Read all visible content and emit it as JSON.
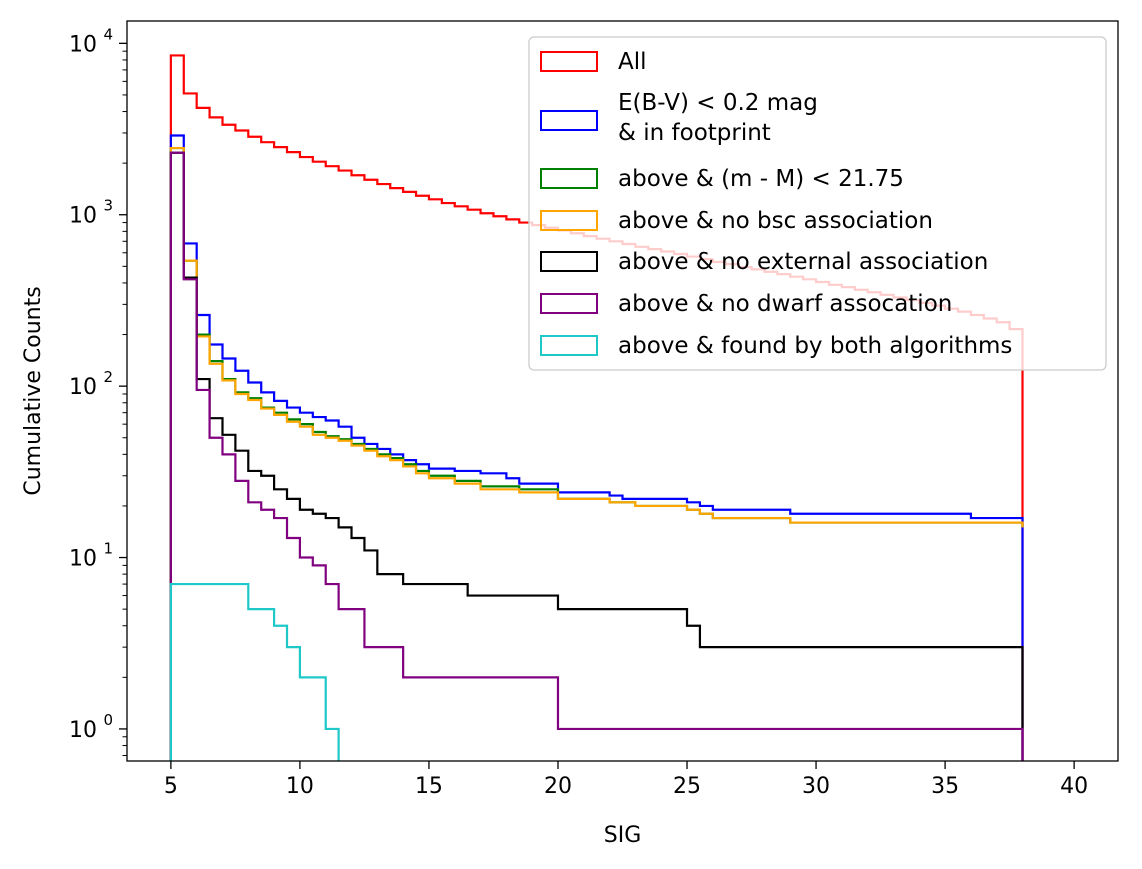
{
  "chart_data": {
    "type": "step-histogram",
    "xlabel": "SIG",
    "ylabel": "Cumulative Counts",
    "xlim": [
      3.3,
      41.7
    ],
    "ylim": [
      0.65,
      13500
    ],
    "yscale": "log",
    "xticks": [
      5,
      10,
      15,
      20,
      25,
      30,
      35,
      40
    ],
    "xtick_labels": [
      "5",
      "10",
      "15",
      "20",
      "25",
      "30",
      "35",
      "40"
    ],
    "yticks": [
      {
        "base": "10",
        "exp": "0",
        "value": 1
      },
      {
        "base": "10",
        "exp": "1",
        "value": 10
      },
      {
        "base": "10",
        "exp": "2",
        "value": 100
      },
      {
        "base": "10",
        "exp": "3",
        "value": 1000
      },
      {
        "base": "10",
        "exp": "4",
        "value": 10000
      }
    ],
    "legend_position": "top-right",
    "series": [
      {
        "name": "All",
        "color": "#ff0000",
        "edges": [
          5,
          5.5,
          6,
          6.5,
          7,
          7.5,
          8,
          8.5,
          9,
          9.5,
          10,
          10.5,
          11,
          11.5,
          12,
          12.5,
          13,
          13.5,
          14,
          14.5,
          15,
          15.5,
          16,
          16.5,
          17,
          17.5,
          18,
          18.5,
          19,
          19.5,
          20,
          20.5,
          21,
          21.5,
          22,
          22.5,
          23,
          23.5,
          24,
          24.5,
          25,
          25.5,
          26,
          26.5,
          27,
          27.5,
          28,
          28.5,
          29,
          29.5,
          30,
          30.5,
          31,
          31.5,
          32,
          32.5,
          33,
          33.5,
          34,
          34.5,
          35,
          35.5,
          36,
          36.5,
          37,
          37.5,
          38
        ],
        "counts": [
          8500,
          5100,
          4200,
          3700,
          3350,
          3100,
          2850,
          2650,
          2480,
          2320,
          2170,
          2040,
          1920,
          1810,
          1700,
          1600,
          1510,
          1430,
          1360,
          1290,
          1230,
          1170,
          1120,
          1070,
          1020,
          980,
          940,
          900,
          870,
          840,
          810,
          780,
          750,
          725,
          700,
          675,
          650,
          630,
          610,
          590,
          570,
          550,
          530,
          515,
          495,
          480,
          465,
          450,
          435,
          420,
          405,
          390,
          378,
          365,
          353,
          341,
          329,
          318,
          306,
          295,
          283,
          272,
          260,
          248,
          236,
          215
        ]
      },
      {
        "name": "E(B-V) < 0.2 mag\n& in footprint",
        "color": "#0000ff",
        "edges": [
          5,
          5.5,
          6,
          6.5,
          7,
          7.5,
          8,
          8.5,
          9,
          9.5,
          10,
          10.5,
          11,
          11.5,
          12,
          12.5,
          13,
          13.5,
          14,
          14.5,
          15,
          16,
          17,
          18,
          18.5,
          20,
          22,
          22.5,
          25,
          25.5,
          26,
          29,
          36,
          38
        ],
        "counts": [
          2900,
          680,
          260,
          175,
          145,
          123,
          105,
          92,
          82,
          75,
          70,
          66,
          63,
          58,
          50,
          46,
          43,
          40,
          37,
          35,
          33,
          32,
          31,
          29,
          27,
          24,
          23,
          22,
          21,
          20,
          19,
          18,
          17
        ]
      },
      {
        "name": "above & (m - M) < 21.75",
        "color": "#008000",
        "edges": [
          5,
          5.5,
          6,
          6.5,
          7,
          7.5,
          8,
          8.5,
          9,
          9.5,
          10,
          10.5,
          11,
          11.5,
          12,
          12.5,
          13,
          13.5,
          14,
          14.5,
          15,
          16,
          17,
          18.5,
          20,
          22,
          23,
          25,
          25.5,
          26,
          29,
          38
        ],
        "counts": [
          2450,
          540,
          200,
          140,
          110,
          92,
          85,
          75,
          70,
          64,
          60,
          54,
          51,
          49,
          46,
          43,
          40,
          38,
          35,
          32,
          30,
          28,
          26,
          25,
          22,
          21,
          20,
          19,
          18,
          17,
          16,
          15
        ]
      },
      {
        "name": "above & no bsc association",
        "color": "#ffa500",
        "edges": [
          5,
          5.5,
          6,
          6.5,
          7,
          7.5,
          8,
          8.5,
          9,
          9.5,
          10,
          10.5,
          11,
          11.5,
          12,
          12.5,
          13,
          13.5,
          14,
          14.5,
          15,
          16,
          17,
          18.5,
          20,
          22,
          23,
          25,
          25.5,
          26,
          29,
          38
        ],
        "counts": [
          2450,
          540,
          195,
          135,
          108,
          90,
          83,
          74,
          68,
          62,
          58,
          52,
          50,
          48,
          45,
          42,
          39,
          37,
          34,
          31,
          29,
          27,
          25,
          24,
          22,
          21,
          20,
          19,
          18,
          17,
          16,
          15
        ]
      },
      {
        "name": "above & no external association",
        "color": "#000000",
        "edges": [
          5,
          5.5,
          6,
          6.5,
          7,
          7.5,
          8,
          8.5,
          9,
          9.5,
          10,
          10.5,
          11,
          11.5,
          12,
          12.5,
          13,
          14,
          16.5,
          20,
          25,
          25.5,
          38
        ],
        "counts": [
          2300,
          430,
          110,
          65,
          52,
          42,
          32,
          30,
          25,
          22,
          19,
          18,
          17,
          15,
          13,
          11,
          8,
          7,
          6,
          5,
          4,
          3
        ]
      },
      {
        "name": "above & no dwarf assocation",
        "color": "#800080",
        "edges": [
          5,
          5.5,
          6,
          6.5,
          7,
          7.5,
          8,
          8.5,
          9,
          9.5,
          10,
          10.5,
          11,
          11.5,
          12.5,
          14,
          20,
          38
        ],
        "counts": [
          2300,
          420,
          95,
          50,
          40,
          28,
          21,
          19,
          17,
          13,
          10,
          9,
          7,
          5,
          3,
          2,
          1
        ]
      },
      {
        "name": "above & found by both algorithms",
        "color": "#1ec8c8",
        "edges": [
          5,
          8,
          8.5,
          9,
          9.5,
          10,
          11,
          11.5
        ],
        "counts": [
          7,
          5,
          5,
          4,
          3,
          2,
          1
        ]
      }
    ]
  }
}
